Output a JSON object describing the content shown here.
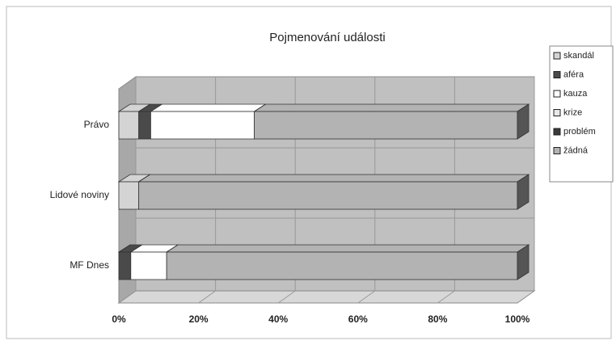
{
  "chart_data": {
    "type": "bar3d_stacked_horizontal",
    "title": "Pojmenování události",
    "categories": [
      "Právo",
      "Lidové noviny",
      "MF Dnes"
    ],
    "series": [
      {
        "name": "skandál",
        "color": "#d4d4d4",
        "values": [
          5,
          5,
          0
        ]
      },
      {
        "name": "aféra",
        "color": "#4a4a4a",
        "values": [
          3,
          0,
          3
        ]
      },
      {
        "name": "kauza",
        "color": "#ffffff",
        "values": [
          26,
          0,
          9
        ]
      },
      {
        "name": "krize",
        "color": "#e8e8e8",
        "values": [
          0,
          0,
          0
        ]
      },
      {
        "name": "problém",
        "color": "#3a3a3a",
        "values": [
          0,
          0,
          0
        ]
      },
      {
        "name": "žádná",
        "color": "#b3b3b3",
        "values": [
          66,
          95,
          88
        ]
      }
    ],
    "xlim": [
      0,
      100
    ],
    "xticks": [
      {
        "value": 0,
        "label": "0%"
      },
      {
        "value": 20,
        "label": "20%"
      },
      {
        "value": 40,
        "label": "40%"
      },
      {
        "value": 60,
        "label": "60%"
      },
      {
        "value": 80,
        "label": "80%"
      },
      {
        "value": 100,
        "label": "100%"
      }
    ],
    "grid": true,
    "legend": "right"
  }
}
